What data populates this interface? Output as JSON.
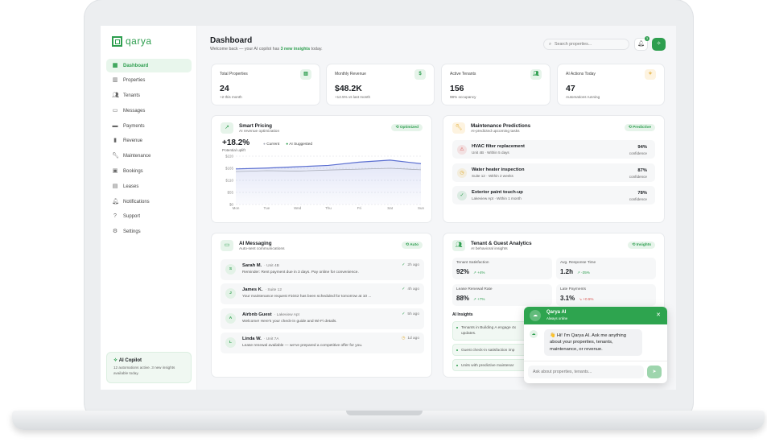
{
  "brand": {
    "name": "qarya",
    "accent": "#2e9e4f"
  },
  "sidebar": {
    "items": [
      {
        "label": "Dashboard",
        "icon": "grid-icon",
        "active": true
      },
      {
        "label": "Properties",
        "icon": "building-icon"
      },
      {
        "label": "Tenants",
        "icon": "users-icon"
      },
      {
        "label": "Messages",
        "icon": "message-icon"
      },
      {
        "label": "Payments",
        "icon": "credit-card-icon"
      },
      {
        "label": "Revenue",
        "icon": "bar-chart-icon"
      },
      {
        "label": "Maintenance",
        "icon": "wrench-icon"
      },
      {
        "label": "Bookings",
        "icon": "calendar-icon"
      },
      {
        "label": "Leases",
        "icon": "document-icon"
      },
      {
        "label": "Notifications",
        "icon": "bell-icon"
      },
      {
        "label": "Support",
        "icon": "help-icon"
      },
      {
        "label": "Settings",
        "icon": "gear-icon"
      }
    ],
    "copilot": {
      "title": "AI Copilot",
      "text": "12 automations active. 3 new insights available today."
    }
  },
  "header": {
    "title": "Dashboard",
    "sub_pre": "Welcome back — your AI copilot has ",
    "sub_hl": "3 new insights",
    "sub_post": " today.",
    "search_placeholder": "Search properties...",
    "notif_count": "3"
  },
  "stats": [
    {
      "label": "Total Properties",
      "value": "24",
      "sub": "+2 this month",
      "icon": "building-icon"
    },
    {
      "label": "Monthly Revenue",
      "value": "$48.2K",
      "sub": "+12.5% vs last month",
      "icon": "dollar-icon"
    },
    {
      "label": "Active Tenants",
      "value": "156",
      "sub": "98% occupancy",
      "icon": "users-icon"
    },
    {
      "label": "AI Actions Today",
      "value": "47",
      "sub": "Automations running",
      "icon": "sparkle-icon"
    }
  ],
  "pricing": {
    "title": "Smart Pricing",
    "sub": "AI revenue optimization",
    "badge": "Optimized",
    "uplift": "+18.2%",
    "uplift_label": "Potential uplift"
  },
  "chart_data": {
    "type": "area",
    "categories": [
      "Mon",
      "Tue",
      "Wed",
      "Thu",
      "Fri",
      "Sat",
      "Sun"
    ],
    "yticks": [
      "$220",
      "$165",
      "$110",
      "$55",
      "$0"
    ],
    "ylim": [
      0,
      220
    ],
    "series": [
      {
        "name": "Current",
        "color": "#a9adb8",
        "values": [
          150,
          154,
          152,
          157,
          161,
          165,
          158
        ]
      },
      {
        "name": "AI Suggested",
        "color": "#5b6fd1",
        "values": [
          162,
          166,
          172,
          178,
          193,
          202,
          186
        ]
      }
    ],
    "legend": "top-left",
    "grid": true
  },
  "maintenance": {
    "title": "Maintenance Predictions",
    "sub": "AI-predicted upcoming tasks",
    "badge": "Predictive",
    "items": [
      {
        "title": "HVAC filter replacement",
        "sub": "Unit 4B · Within 5 days",
        "conf": "94%",
        "conf_label": "confidence",
        "icon": "warning-icon",
        "color": "#d9534f"
      },
      {
        "title": "Water heater inspection",
        "sub": "Suite 12 · Within 2 weeks",
        "conf": "87%",
        "conf_label": "confidence",
        "icon": "clock-icon",
        "color": "#e0a92b"
      },
      {
        "title": "Exterior paint touch-up",
        "sub": "Lakeview Apt · Within 1 month",
        "conf": "78%",
        "conf_label": "confidence",
        "icon": "check-circle-icon",
        "color": "#2e9e4f"
      }
    ]
  },
  "messaging": {
    "title": "AI Messaging",
    "sub": "Auto-sent communications",
    "badge": "Auto",
    "items": [
      {
        "initial": "S",
        "name": "Sarah M.",
        "unit": "· Unit 4B",
        "text": "Reminder: Rent payment due in 3 days. Pay online for convenience.",
        "time": "2h ago",
        "status": "check-icon"
      },
      {
        "initial": "J",
        "name": "James K.",
        "unit": "· Suite 12",
        "text": "Your maintenance request #1042 has been scheduled for tomorrow at 10 ...",
        "time": "4h ago",
        "status": "check-icon"
      },
      {
        "initial": "A",
        "name": "Airbnb Guest",
        "unit": "· Lakeview Apt",
        "text": "Welcome! Here's your check-in guide and Wi-Fi details.",
        "time": "5h ago",
        "status": "check-icon"
      },
      {
        "initial": "L",
        "name": "Linda W.",
        "unit": "· Unit 7A",
        "text": "Lease renewal available — we've prepared a competitive offer for you.",
        "time": "1d ago",
        "status": "clock-icon"
      }
    ]
  },
  "analytics": {
    "title": "Tenant & Guest Analytics",
    "sub": "AI behavioral insights",
    "badge": "Insights",
    "tiles": [
      {
        "label": "Tenant Satisfaction",
        "value": "92%",
        "delta": "↗ +4%",
        "neg": false
      },
      {
        "label": "Avg. Response Time",
        "value": "1.2h",
        "delta": "↗ -35%",
        "neg": false
      },
      {
        "label": "Lease Renewal Rate",
        "value": "88%",
        "delta": "↗ +7%",
        "neg": false
      },
      {
        "label": "Late Payments",
        "value": "3.1%",
        "delta": "↘ +0.5%",
        "neg": true
      }
    ],
    "insights_title": "AI Insights",
    "insights": [
      "Tenants in Building A engage 4x",
      "updates.",
      "Guest check-in satisfaction imp",
      "Units with predictive maintenar"
    ]
  },
  "chat": {
    "name": "Qarya AI",
    "status": "Always online",
    "message": "👋 Hi! I'm Qarya AI. Ask me anything about your properties, tenants, maintenance, or revenue.",
    "placeholder": "Ask about properties, tenants..."
  }
}
